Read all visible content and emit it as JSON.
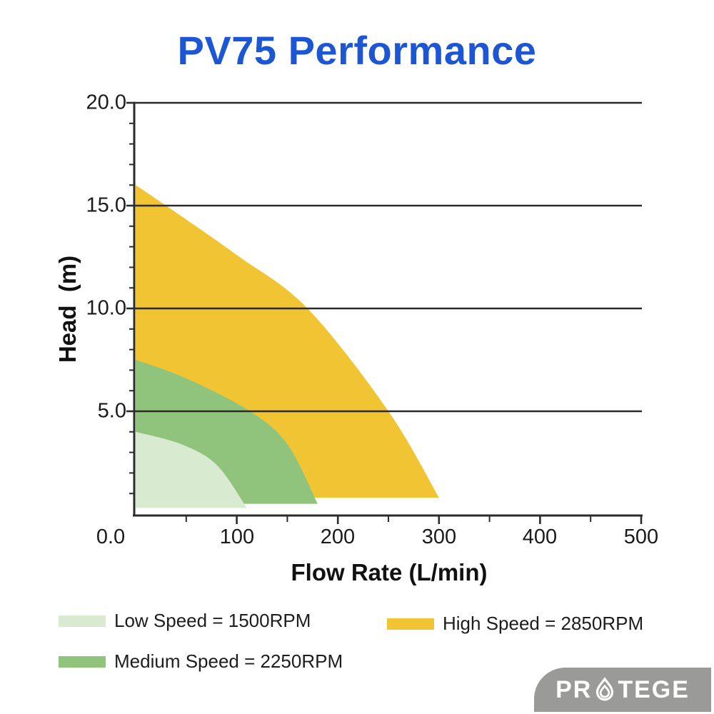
{
  "title": "PV75 Performance",
  "colors": {
    "title_blue": "#1d56d4",
    "axis_ink": "#2b2b2b",
    "low_speed": "#d8eacf",
    "medium_speed": "#90c47c",
    "high_speed": "#f0c433",
    "logo_bg": "#9a9a98",
    "logo_text": "#ffffff"
  },
  "chart_data": {
    "type": "area",
    "title": "PV75 Performance",
    "xlabel": "Flow Rate (L/min)",
    "ylabel": "Head  (m)",
    "xlim": [
      0,
      500
    ],
    "ylim": [
      0,
      20
    ],
    "grid": "horizontal major gridlines on",
    "legend_position": "below chart",
    "x_tick_labels": [
      "0.0",
      "100",
      "200",
      "300",
      "400",
      "500"
    ],
    "x_major_values": [
      0,
      100,
      200,
      300,
      400,
      500
    ],
    "x_minor_step": 50,
    "y_tick_labels": [
      "20.0",
      "15.0",
      "10.0",
      "5.0"
    ],
    "y_major_values": [
      20,
      15,
      10,
      5
    ],
    "y_minor_step": 1,
    "series": [
      {
        "name": "Low Speed = 1500RPM",
        "rpm": 1500,
        "color": "#d8eacf",
        "shutoff_head_m": 4.0,
        "max_flow_l_min": 110,
        "points_flow_head": [
          [
            0,
            4.0
          ],
          [
            45,
            3.4
          ],
          [
            80,
            2.4
          ],
          [
            110,
            0.3
          ]
        ]
      },
      {
        "name": "Medium Speed = 2250RPM",
        "rpm": 2250,
        "color": "#90c47c",
        "shutoff_head_m": 7.5,
        "max_flow_l_min": 180,
        "points_flow_head": [
          [
            0,
            7.5
          ],
          [
            50,
            6.6
          ],
          [
            113,
            5.0
          ],
          [
            150,
            3.4
          ],
          [
            180,
            0.5
          ]
        ]
      },
      {
        "name": "High Speed = 2850RPM",
        "rpm": 2850,
        "color": "#f0c433",
        "shutoff_head_m": 16.0,
        "max_flow_l_min": 300,
        "points_flow_head": [
          [
            0,
            16.0
          ],
          [
            30,
            15.0
          ],
          [
            100,
            12.6
          ],
          [
            170,
            10.0
          ],
          [
            250,
            5.0
          ],
          [
            300,
            0.8
          ]
        ]
      }
    ]
  },
  "legend": {
    "items": [
      {
        "label": "Low Speed = 1500RPM",
        "color": "#d8eacf"
      },
      {
        "label": "Medium Speed = 2250RPM",
        "color": "#90c47c"
      },
      {
        "label": "High Speed = 2850RPM",
        "color": "#f0c433"
      }
    ]
  },
  "logo": {
    "brand": "PROTEGE",
    "text_left": "PR",
    "text_right": "TEGE",
    "icon": "water-drop-icon"
  }
}
